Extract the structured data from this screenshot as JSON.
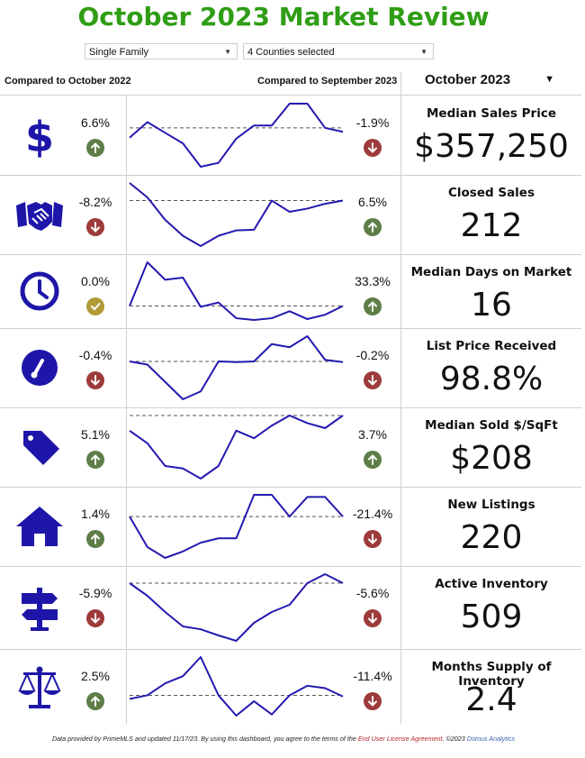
{
  "title": "October 2023 Market Review",
  "filters": {
    "property_type": "Single Family",
    "counties": "4 Counties selected"
  },
  "headers": {
    "compared_year": "Compared to October 2022",
    "compared_month": "Compared to September 2023",
    "month_selector": "October 2023"
  },
  "colors": {
    "title": "#2f9d15",
    "icon": "#1e16a8",
    "line": "#2419b0",
    "up": "#5e7d47",
    "down": "#9d3b3b",
    "flat": "#b19a36"
  },
  "chart_data": [
    {
      "type": "line",
      "title": "Median Sales Price",
      "value": "$357,250",
      "icon": "dollar-icon",
      "yoy_change": "6.6%",
      "yoy_dir": "up",
      "mom_change": "-1.9%",
      "mom_dir": "down",
      "values": [
        0.3,
        0.62,
        0.4,
        0.18,
        -0.3,
        -0.22,
        0.28,
        0.55,
        0.55,
        1.0,
        1.0,
        0.5,
        0.42
      ],
      "reference": 0.5
    },
    {
      "type": "line",
      "title": "Closed Sales",
      "value": "212",
      "icon": "handshake-icon",
      "yoy_change": "-8.2%",
      "yoy_dir": "down",
      "mom_change": "6.5%",
      "mom_dir": "up",
      "values": [
        1.05,
        0.6,
        -0.1,
        -0.6,
        -0.92,
        -0.6,
        -0.43,
        -0.41,
        0.5,
        0.15,
        0.25,
        0.4,
        0.5
      ],
      "reference": 0.5
    },
    {
      "type": "line",
      "title": "Median Days on Market",
      "value": "16",
      "icon": "clock-icon",
      "yoy_change": "0.0%",
      "yoy_dir": "flat",
      "mom_change": "33.3%",
      "mom_dir": "up",
      "values": [
        0.5,
        1.5,
        1.1,
        1.15,
        0.48,
        0.58,
        0.22,
        0.18,
        0.22,
        0.38,
        0.2,
        0.3,
        0.5
      ],
      "reference": 0.5
    },
    {
      "type": "line",
      "title": "List Price Received",
      "value": "98.8%",
      "icon": "gauge-icon",
      "yoy_change": "-0.4%",
      "yoy_dir": "down",
      "mom_change": "-0.2%",
      "mom_dir": "down",
      "values": [
        0.5,
        0.4,
        -0.15,
        -0.7,
        -0.45,
        0.5,
        0.48,
        0.5,
        1.05,
        0.95,
        1.3,
        0.55,
        0.48
      ],
      "reference": 0.5
    },
    {
      "type": "line",
      "title": "Median Sold $/SqFt",
      "value": "$208",
      "icon": "tag-icon",
      "yoy_change": "5.1%",
      "yoy_dir": "up",
      "mom_change": "3.7%",
      "mom_dir": "up",
      "values": [
        -0.1,
        -0.35,
        -0.8,
        -0.85,
        -1.05,
        -0.8,
        -0.1,
        -0.25,
        0.0,
        0.2,
        0.05,
        -0.05,
        0.2
      ],
      "reference": 0.2
    },
    {
      "type": "line",
      "title": "New Listings",
      "value": "220",
      "icon": "house-icon",
      "yoy_change": "1.4%",
      "yoy_dir": "up",
      "mom_change": "-21.4%",
      "mom_dir": "down",
      "values": [
        0.5,
        -0.2,
        -0.45,
        -0.3,
        -0.1,
        0.0,
        0.0,
        1.0,
        1.0,
        0.5,
        0.95,
        0.95,
        0.5
      ],
      "reference": 0.5
    },
    {
      "type": "line",
      "title": "Active Inventory",
      "value": "509",
      "icon": "signpost-icon",
      "yoy_change": "-5.9%",
      "yoy_dir": "down",
      "mom_change": "-5.6%",
      "mom_dir": "down",
      "values": [
        0.5,
        0.15,
        -0.3,
        -0.7,
        -0.78,
        -0.95,
        -1.1,
        -0.6,
        -0.3,
        -0.1,
        0.5,
        0.75,
        0.5
      ],
      "reference": 0.5
    },
    {
      "type": "line",
      "title": "Months Supply of Inventory",
      "value": "2.4",
      "icon": "scales-icon",
      "yoy_change": "2.5%",
      "yoy_dir": "up",
      "mom_change": "-11.4%",
      "mom_dir": "down",
      "values": [
        0.35,
        0.5,
        1.0,
        1.3,
        2.1,
        0.5,
        -0.35,
        0.25,
        -0.3,
        0.5,
        0.9,
        0.8,
        0.45
      ],
      "reference": 0.5
    }
  ],
  "footer": {
    "prefix": "Data provided by PrimeMLS and updated 11/17/23.  By using this dashboard, you agree to the terms of the",
    "license": "End User License Agreement",
    "copyright": ".  ©2023",
    "brand": "Domus Analytics"
  }
}
